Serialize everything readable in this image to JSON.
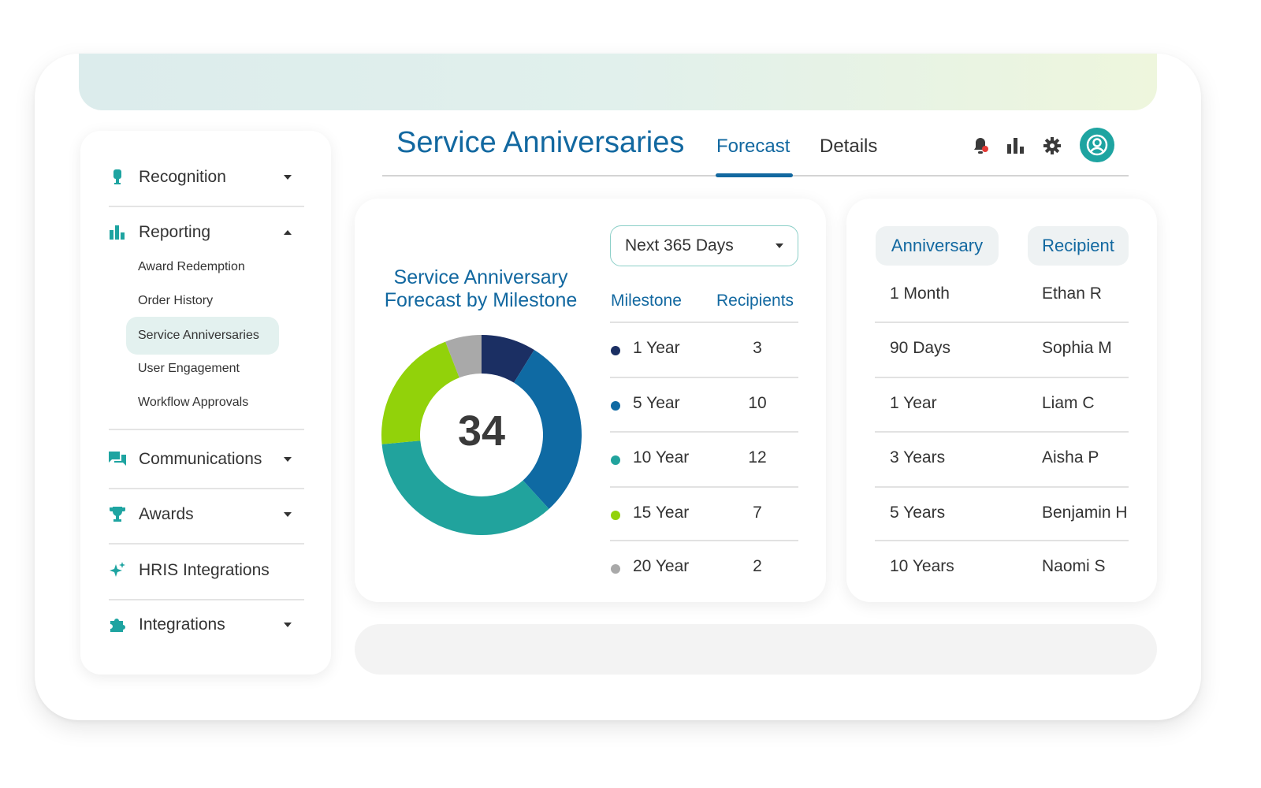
{
  "sidebar": {
    "recognition": "Recognition",
    "reporting": "Reporting",
    "reporting_items": [
      "Award Redemption",
      "Order History",
      "Service Anniversaries",
      "User Engagement",
      "Workflow Approvals"
    ],
    "active_item": "Service Anniversaries",
    "communications": "Communications",
    "awards": "Awards",
    "hris": "HRIS Integrations",
    "integrations": "Integrations",
    "icons": [
      "award-ribbon-icon",
      "bar-chart-icon",
      "chat-bubbles-icon",
      "trophy-icon",
      "sparkle-icon",
      "puzzle-icon"
    ]
  },
  "header": {
    "title": "Service Anniversaries",
    "tabs": [
      "Forecast",
      "Details"
    ],
    "active_tab": "Forecast",
    "icons": [
      "bell-icon",
      "bar-chart-icon",
      "gear-icon",
      "user-avatar-icon"
    ]
  },
  "forecast": {
    "chart_title_line1": "Service Anniversary",
    "chart_title_line2": "Forecast by Milestone",
    "total": "34",
    "dropdown_value": "Next 365 Days",
    "col_milestone": "Milestone",
    "col_recipients": "Recipients"
  },
  "chart_data": {
    "type": "pie",
    "title": "Service Anniversary Forecast by Milestone",
    "center_label": "34",
    "categories": [
      "1 Year",
      "5 Year",
      "10 Year",
      "15 Year",
      "20 Year"
    ],
    "values": [
      3,
      10,
      12,
      7,
      2
    ],
    "colors": [
      "#1b2f63",
      "#0f6aa3",
      "#21a39d",
      "#92d20a",
      "#a9a9a9"
    ]
  },
  "anniversary_table": {
    "col_anniversary": "Anniversary",
    "col_recipient": "Recipient",
    "rows": [
      {
        "anniversary": "1 Month",
        "recipient": "Ethan R"
      },
      {
        "anniversary": "90 Days",
        "recipient": "Sophia M"
      },
      {
        "anniversary": "1 Year",
        "recipient": "Liam C"
      },
      {
        "anniversary": "3 Years",
        "recipient": "Aisha P"
      },
      {
        "anniversary": "5 Years",
        "recipient": "Benjamin H"
      },
      {
        "anniversary": "10 Years",
        "recipient": "Naomi S"
      }
    ]
  },
  "colors": {
    "brand_blue": "#1268a0",
    "teal": "#1ea4a1",
    "notification_red": "#e53935"
  }
}
